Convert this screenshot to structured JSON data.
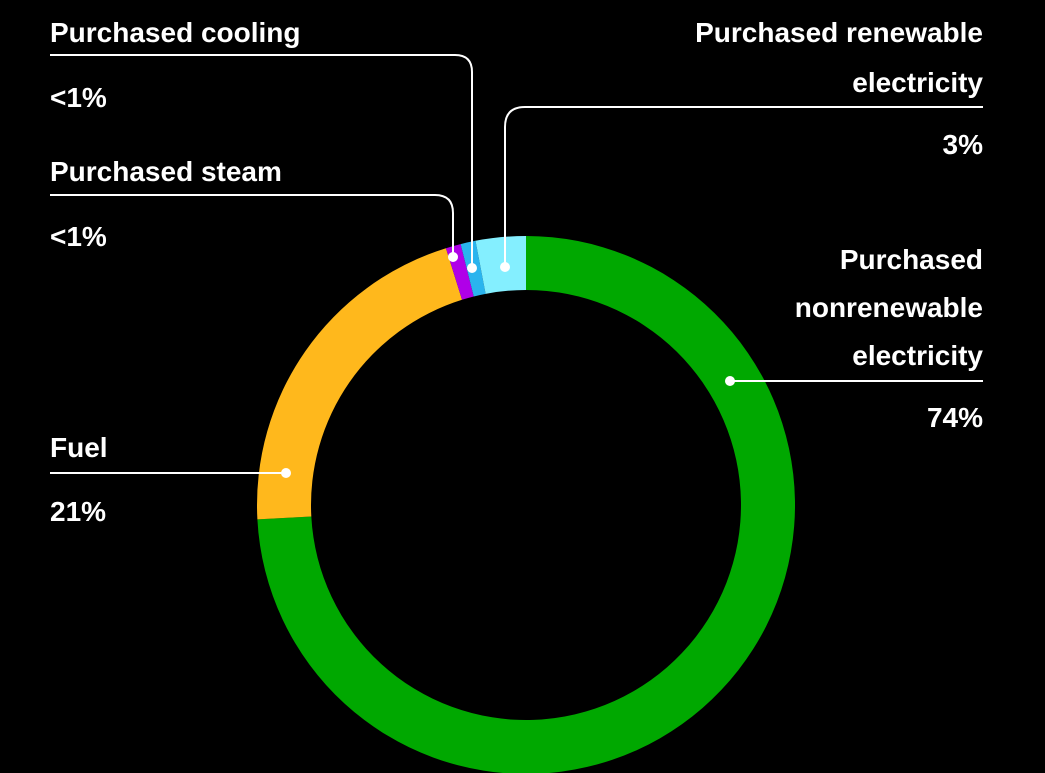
{
  "chart_data": {
    "type": "donut",
    "categories": [
      "Purchased nonrenewable electricity",
      "Fuel",
      "Purchased steam",
      "Purchased cooling",
      "Purchased renewable electricity"
    ],
    "values": [
      74,
      21,
      0.9,
      0.9,
      3
    ],
    "value_labels": [
      "74%",
      "21%",
      "<1%",
      "<1%",
      "3%"
    ],
    "colors": [
      "#00a800",
      "#ffb81c",
      "#b000e8",
      "#2ab4ee",
      "#84efff"
    ]
  }
}
